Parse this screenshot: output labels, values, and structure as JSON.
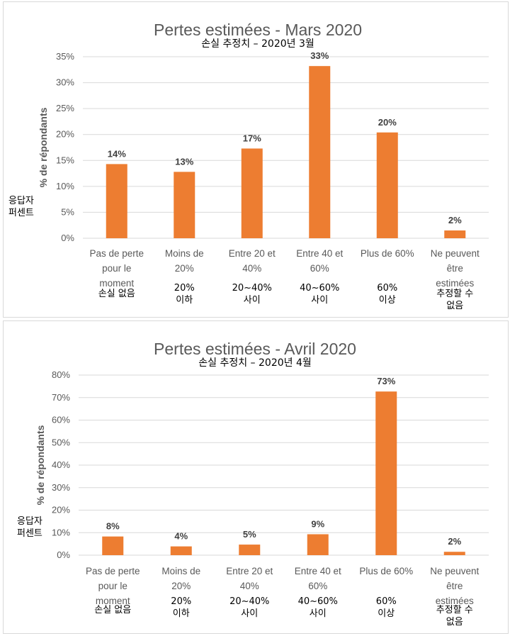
{
  "chart_data": [
    {
      "type": "bar",
      "title": "Pertes estimées - Mars 2020",
      "subtitle": "손실 추정치 – 2020년 3월",
      "ylabel": "% de répondants",
      "side_label": [
        "응답자",
        "퍼센트"
      ],
      "ylim": [
        0,
        35
      ],
      "yticks": [
        "0%",
        "5%",
        "10%",
        "15%",
        "20%",
        "25%",
        "30%",
        "35%"
      ],
      "ystep": 5,
      "grid": true,
      "categories": [
        [
          "Pas de perte",
          "pour le",
          "moment"
        ],
        [
          "Moins de",
          "20%"
        ],
        [
          "Entre 20 et",
          "40%"
        ],
        [
          "Entre 40 et",
          "60%"
        ],
        [
          "Plus de 60%"
        ],
        [
          "Ne peuvent",
          "être",
          "estimées"
        ]
      ],
      "categories_ko": [
        [
          "손실 없음"
        ],
        [
          "20%",
          "이하"
        ],
        [
          "20~40%",
          "사이"
        ],
        [
          "40~60%",
          "사이"
        ],
        [
          "60%",
          "이상"
        ],
        [
          "추정할 수",
          "없음"
        ]
      ],
      "values": [
        14.3,
        12.8,
        17.3,
        33.2,
        20.4,
        1.5
      ],
      "data_labels": [
        "14%",
        "13%",
        "17%",
        "33%",
        "20%",
        "2%"
      ],
      "color": "#ed7d31"
    },
    {
      "type": "bar",
      "title": "Pertes estimées - Avril 2020",
      "subtitle": "손실 추정치 – 2020년 4월",
      "ylabel": "% de répondants",
      "side_label": [
        "응답자",
        "퍼센트"
      ],
      "ylim": [
        0,
        80
      ],
      "yticks": [
        "0%",
        "10%",
        "20%",
        "30%",
        "40%",
        "50%",
        "60%",
        "70%",
        "80%"
      ],
      "ystep": 10,
      "grid": true,
      "categories": [
        [
          "Pas de perte",
          "pour le",
          "moment"
        ],
        [
          "Moins de",
          "20%"
        ],
        [
          "Entre 20 et",
          "40%"
        ],
        [
          "Entre 40 et",
          "60%"
        ],
        [
          "Plus de 60%"
        ],
        [
          "Ne peuvent",
          "être",
          "estimées"
        ]
      ],
      "categories_ko": [
        [
          "손실 없음"
        ],
        [
          "20%",
          "이하"
        ],
        [
          "20~40%",
          "사이"
        ],
        [
          "40~60%",
          "사이"
        ],
        [
          "60%",
          "이상"
        ],
        [
          "추정할 수",
          "없음"
        ]
      ],
      "values": [
        8.3,
        3.9,
        4.7,
        9.3,
        72.7,
        1.5
      ],
      "data_labels": [
        "8%",
        "4%",
        "5%",
        "9%",
        "73%",
        "2%"
      ],
      "color": "#ed7d31"
    }
  ]
}
